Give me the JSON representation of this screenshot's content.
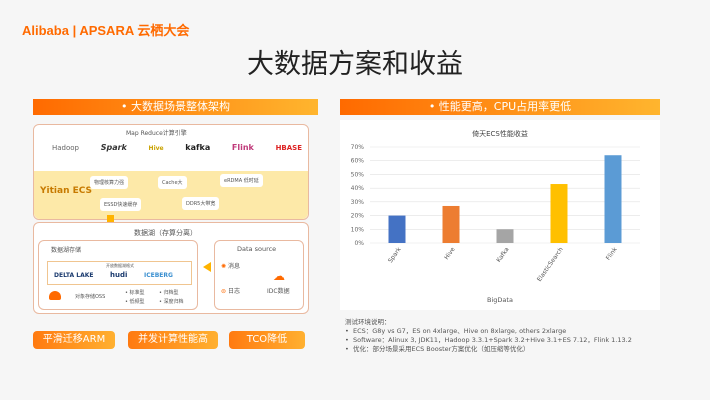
{
  "header": {
    "logo": "Alibaba | APSARA 云栖大会",
    "title": "大数据方案和收益"
  },
  "left": {
    "section_title": "• 大数据场景整体架构",
    "engine_title": "Map Reduce计算引擎",
    "engines": [
      "Hadoop",
      "Spark",
      "Hive",
      "kafka",
      "Flink",
      "HBASE"
    ],
    "ecs_label": "Yitian ECS",
    "ecs_features": [
      "物理核算力强",
      "Cache大",
      "eRDMA 低时延",
      "ESSD快速缓存",
      "DDR5大带宽"
    ],
    "lake_title": "数据湖（存算分离）",
    "storage_title": "数据湖存储",
    "format_title": "开放数据湖格式",
    "formats": [
      "DELTA LAKE",
      "hudi",
      "ICEBERG"
    ],
    "oss_label": "对象存储OSS",
    "oss_tiers": [
      "标准型",
      "归档型",
      "低频型",
      "深度归档"
    ],
    "source_title": "Data source",
    "sources": [
      "消息",
      "日志",
      "IDC数据"
    ],
    "buttons": [
      "平滑迁移ARM",
      "并发计算性能高",
      "TCO降低"
    ]
  },
  "right": {
    "section_title": "• 性能更高，CPU占用率更低",
    "notes_title": "测试环境说明：",
    "notes": [
      "ECS：G8y vs G7，ES on 4xlarge、Hive on 8xlarge, others 2xlarge",
      "Software：Alinux 3, JDK11，Hadoop 3.3.1+Spark 3.2+Hive 3.1+ES 7.12，Flink 1.13.2",
      "优化：部分场景采用ECS Booster方案优化（如压缩等优化）"
    ]
  },
  "chart_data": {
    "type": "bar",
    "title": "倚天ECS性能收益",
    "xlabel": "BigData",
    "ylabel": "",
    "categories": [
      "Spark",
      "Hive",
      "Kafka",
      "ElasticSearch",
      "Flink"
    ],
    "values": [
      20,
      27,
      10,
      43,
      64
    ],
    "colors": [
      "#4472c4",
      "#ed7d31",
      "#a5a5a5",
      "#ffc000",
      "#5b9bd5"
    ],
    "yticks": [
      "0%",
      "10%",
      "20%",
      "30%",
      "40%",
      "50%",
      "60%",
      "70%"
    ],
    "ylim": [
      0,
      70
    ],
    "grid": true
  }
}
